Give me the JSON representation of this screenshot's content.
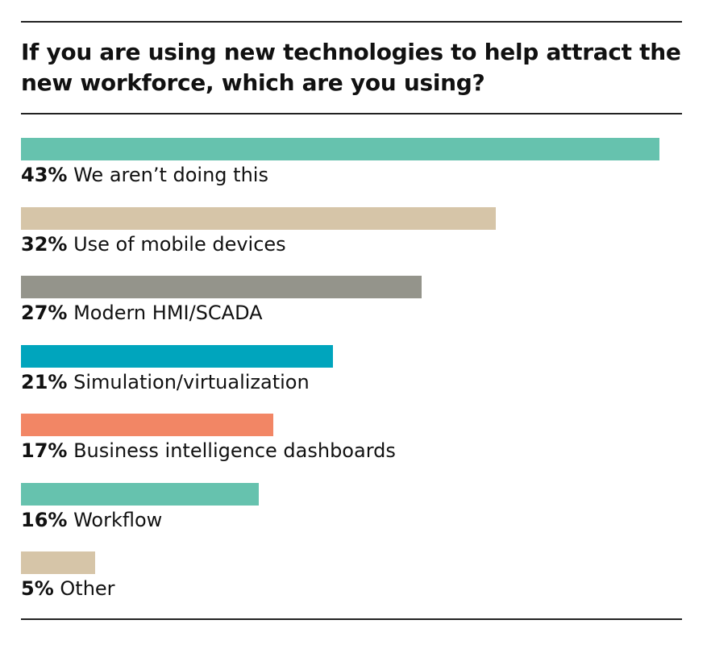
{
  "chart_data": {
    "type": "bar",
    "orientation": "horizontal",
    "title": "If you are using new technologies to help attract the new workforce, which are you using?",
    "categories": [
      "We aren’t doing this",
      "Use of mobile devices",
      "Modern HMI/SCADA",
      "Simulation/virtualization",
      "Business intelligence dashboards",
      "Workflow",
      "Other"
    ],
    "values": [
      43,
      32,
      27,
      21,
      17,
      16,
      5
    ],
    "value_labels": [
      "43%",
      "32%",
      "27%",
      "21%",
      "17%",
      "16%",
      "5%"
    ],
    "colors": [
      "#66c2ae",
      "#d6c5a8",
      "#94948b",
      "#00a5bd",
      "#f28665",
      "#66c2ae",
      "#d6c5a8"
    ],
    "xlim": [
      0,
      43
    ],
    "grid": false,
    "legend": "none"
  }
}
